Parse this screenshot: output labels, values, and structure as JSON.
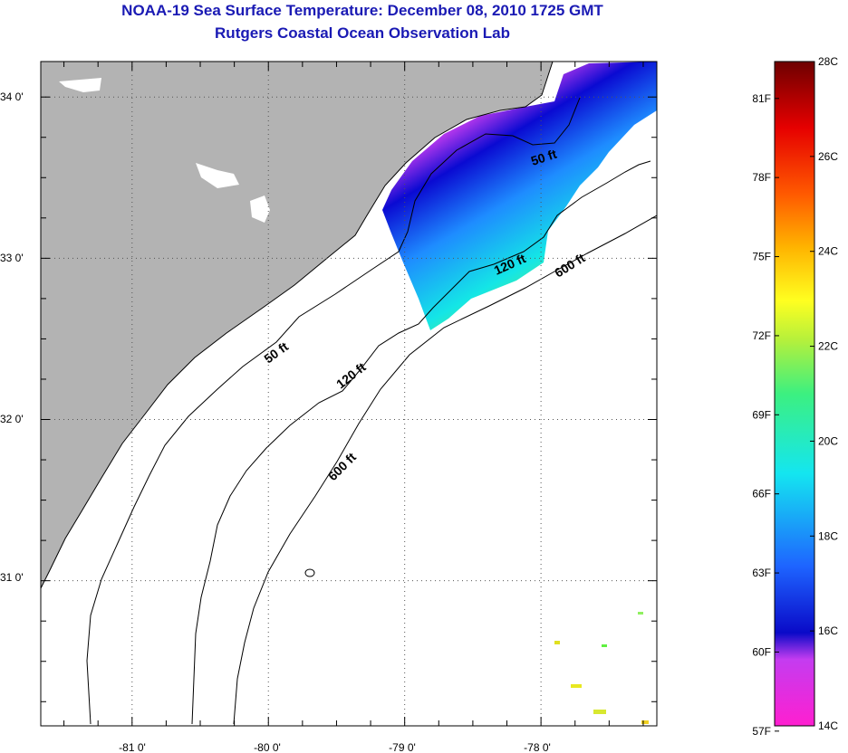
{
  "title": "NOAA-19 Sea Surface Temperature:  December 08, 2010 1725 GMT",
  "subtitle": "Rutgers Coastal Ocean Observation Lab",
  "map": {
    "lon_range": [
      -81.67,
      -77.15
    ],
    "lat_range": [
      30.1,
      34.22
    ],
    "lon_ticks": [
      {
        "value": -81,
        "label": "-81 0'"
      },
      {
        "value": -80,
        "label": "-80 0'"
      },
      {
        "value": -79,
        "label": "-79 0'"
      },
      {
        "value": -78,
        "label": "-78 0'"
      }
    ],
    "lat_ticks": [
      {
        "value": 34,
        "label": "34 0'"
      },
      {
        "value": 33,
        "label": "33 0'"
      },
      {
        "value": 32,
        "label": "32 0'"
      },
      {
        "value": 31,
        "label": "31 0'"
      }
    ],
    "depth_contours": [
      {
        "label": "50 ft"
      },
      {
        "label": "120 ft"
      },
      {
        "label": "600 ft"
      }
    ],
    "colors": {
      "land": "#b3b3b3",
      "ocean": "#ffffff",
      "contour": "#000000"
    }
  },
  "colorbar": {
    "fahrenheit": [
      "81F",
      "78F",
      "75F",
      "72F",
      "69F",
      "66F",
      "63F",
      "60F",
      "57F"
    ],
    "celsius": [
      "28C",
      "26C",
      "24C",
      "22C",
      "20C",
      "18C",
      "16C",
      "14C"
    ],
    "range_c": [
      14,
      28
    ]
  }
}
